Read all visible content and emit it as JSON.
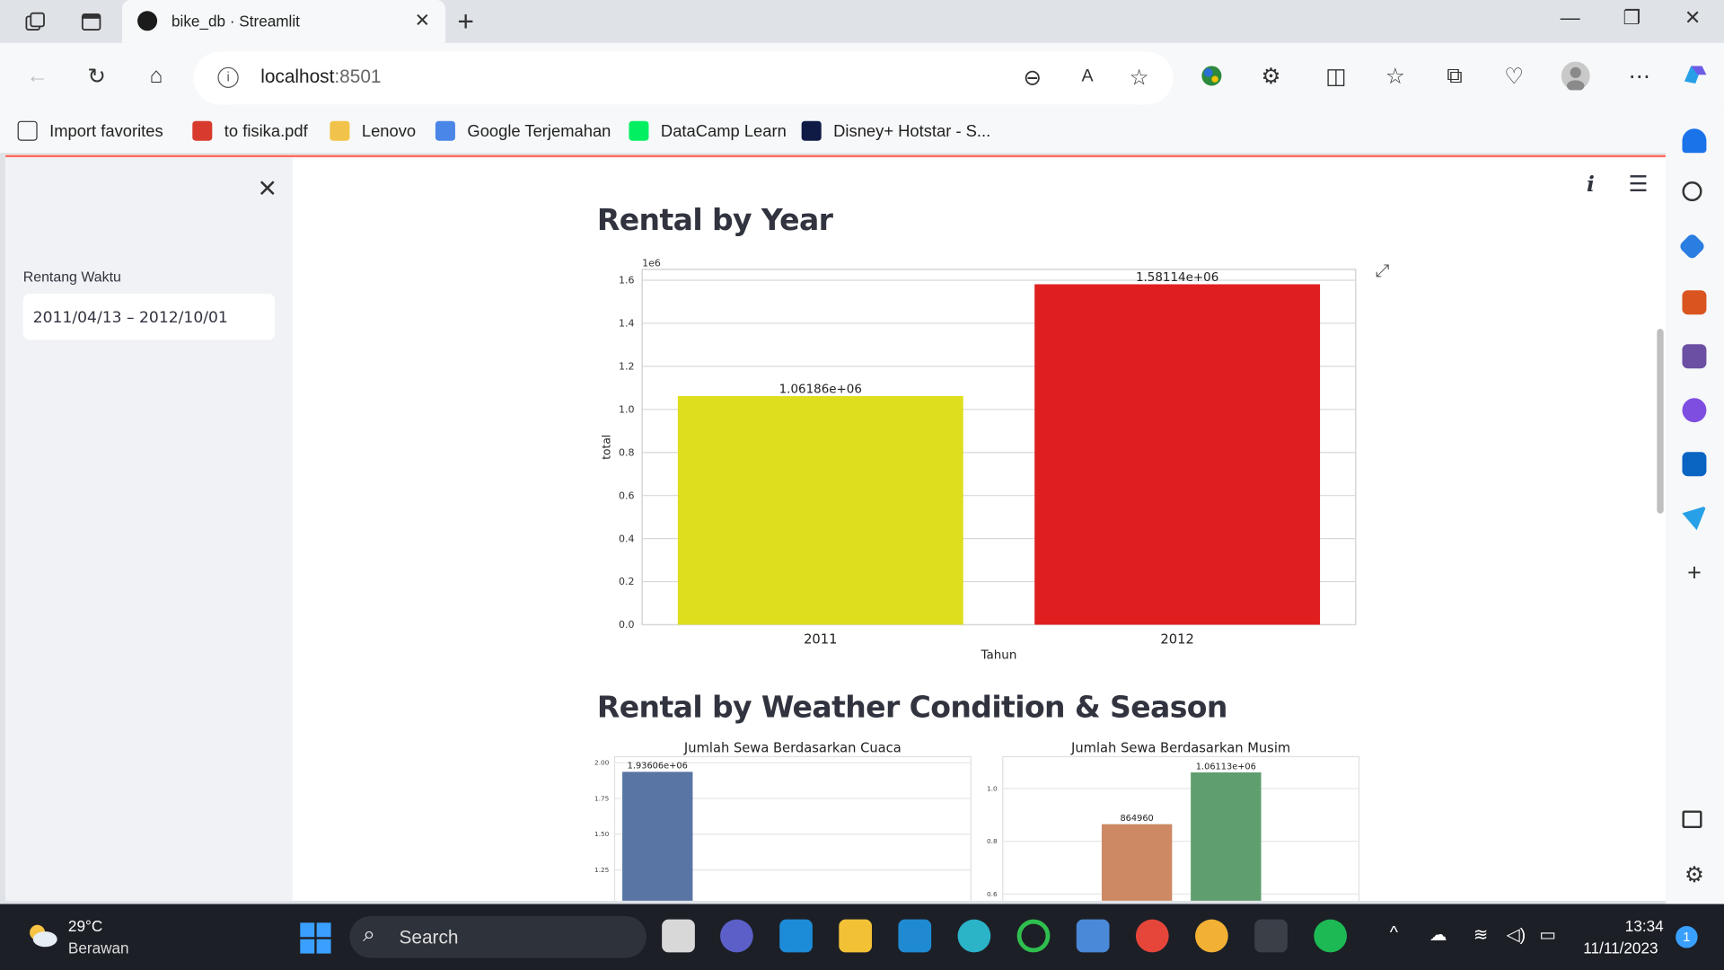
{
  "browser": {
    "tab_title": "bike_db · Streamlit",
    "url_host": "localhost",
    "url_port": ":8501",
    "bookmarks": [
      "Import favorites",
      "to fisika.pdf",
      "Lenovo",
      "Google Terjemahan",
      "DataCamp Learn",
      "Disney+ Hotstar - S..."
    ]
  },
  "sidebar": {
    "label": "Rentang Waktu",
    "date_range": "2011/04/13 – 2012/10/01"
  },
  "main": {
    "section1_title": "Rental by Year",
    "section2_title": "Rental by Weather Condition & Season"
  },
  "chart_data": [
    {
      "type": "bar",
      "title": "",
      "xlabel": "Tahun",
      "ylabel": "total",
      "scale_label": "1e6",
      "categories": [
        "2011",
        "2012"
      ],
      "values": [
        1061860,
        1581140
      ],
      "data_labels": [
        "1.06186e+06",
        "1.58114e+06"
      ],
      "colors": [
        "#dede1f",
        "#df1f1f"
      ],
      "ylim": [
        0,
        1.65
      ],
      "yticks": [
        "0.0",
        "0.2",
        "0.4",
        "0.6",
        "0.8",
        "1.0",
        "1.2",
        "1.4",
        "1.6"
      ],
      "grid": true
    },
    {
      "type": "bar",
      "title": "Jumlah Sewa Berdasarkan Cuaca",
      "categories": [
        ""
      ],
      "values": [
        1936060
      ],
      "data_labels": [
        "1.93606e+06"
      ],
      "colors": [
        "#5875a4"
      ],
      "yticks": [
        "1.25",
        "1.50",
        "1.75",
        "2.00"
      ],
      "grid": true
    },
    {
      "type": "bar",
      "title": "Jumlah Sewa Berdasarkan Musim",
      "categories": [
        "",
        ""
      ],
      "values": [
        864960,
        1061130
      ],
      "data_labels": [
        "864960",
        "1.06113e+06"
      ],
      "colors": [
        "#cc8963",
        "#5f9e6e"
      ],
      "yticks": [
        "0.6",
        "0.8",
        "1.0"
      ],
      "grid": true
    }
  ],
  "taskbar": {
    "temperature": "29°C",
    "weather": "Berawan",
    "search": "Search",
    "time": "13:34",
    "date": "11/11/2023",
    "notif_count": "1"
  }
}
